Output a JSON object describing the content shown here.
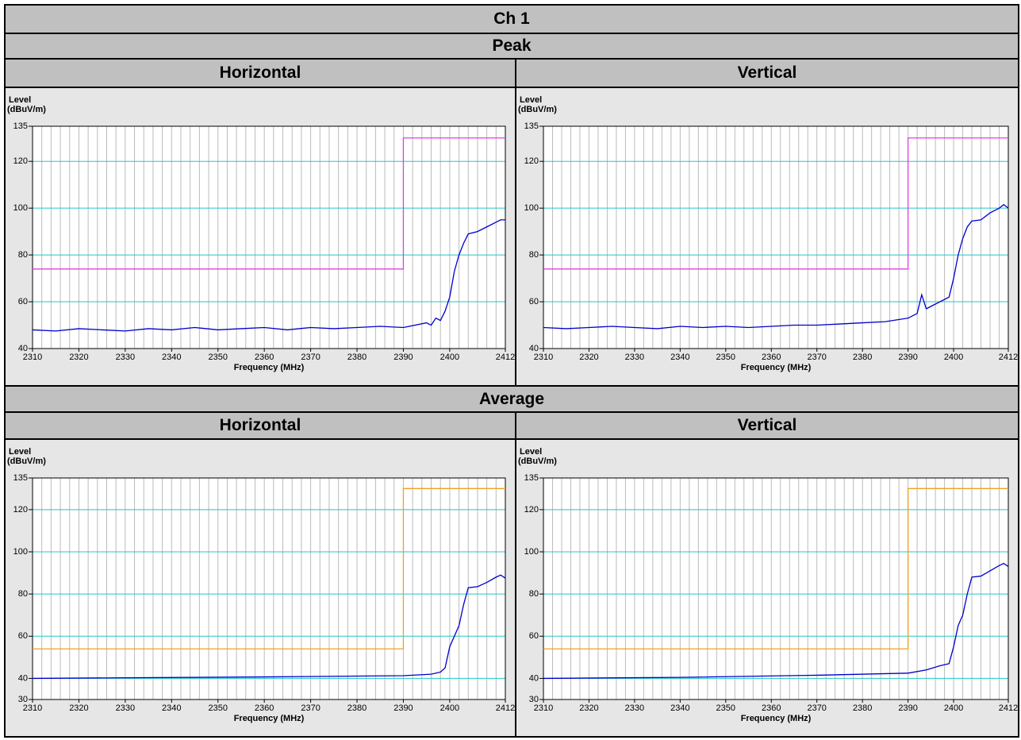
{
  "header": {
    "title": "Ch 1"
  },
  "sections": [
    {
      "title": "Peak",
      "panels": [
        {
          "title": "Horizontal",
          "chart": {
            "type": "line",
            "y_label": "Level",
            "y_unit": "(dBuV/m)",
            "x_label": "Frequency (MHz)",
            "xlim": [
              2310,
              2412
            ],
            "xticks": [
              2310,
              2320,
              2330,
              2340,
              2350,
              2360,
              2370,
              2380,
              2390,
              2400,
              2412
            ],
            "ylim": [
              40,
              135
            ],
            "yticks": [
              40,
              60,
              80,
              100,
              120,
              135
            ],
            "grid": true,
            "minor_grid_step": 2,
            "series": [
              {
                "color": "#e040e0",
                "x": [
                  2310,
                  2390,
                  2390,
                  2412
                ],
                "values": [
                  74,
                  74,
                  130,
                  130
                ]
              },
              {
                "color": "#0000cc",
                "x": [
                  2310,
                  2315,
                  2320,
                  2325,
                  2330,
                  2335,
                  2340,
                  2345,
                  2350,
                  2355,
                  2360,
                  2365,
                  2370,
                  2375,
                  2380,
                  2385,
                  2390,
                  2395,
                  2396,
                  2397,
                  2398,
                  2399,
                  2400,
                  2401,
                  2402,
                  2403,
                  2404,
                  2406,
                  2408,
                  2410,
                  2411,
                  2412
                ],
                "values": [
                  48,
                  47.5,
                  48.5,
                  48,
                  47.5,
                  48.5,
                  48,
                  49,
                  48,
                  48.5,
                  49,
                  48,
                  49,
                  48.5,
                  49,
                  49.5,
                  49,
                  51,
                  50,
                  53,
                  52,
                  56,
                  62,
                  73,
                  80,
                  85,
                  89,
                  90,
                  92,
                  94,
                  95,
                  95
                ]
              }
            ]
          }
        },
        {
          "title": "Vertical",
          "chart": {
            "type": "line",
            "y_label": "Level",
            "y_unit": "(dBuV/m)",
            "x_label": "Frequency (MHz)",
            "xlim": [
              2310,
              2412
            ],
            "xticks": [
              2310,
              2320,
              2330,
              2340,
              2350,
              2360,
              2370,
              2380,
              2390,
              2400,
              2412
            ],
            "ylim": [
              40,
              135
            ],
            "yticks": [
              40,
              60,
              80,
              100,
              120,
              135
            ],
            "grid": true,
            "minor_grid_step": 2,
            "series": [
              {
                "color": "#e040e0",
                "x": [
                  2310,
                  2390,
                  2390,
                  2412
                ],
                "values": [
                  74,
                  74,
                  130,
                  130
                ]
              },
              {
                "color": "#0000cc",
                "x": [
                  2310,
                  2315,
                  2320,
                  2325,
                  2330,
                  2335,
                  2340,
                  2345,
                  2350,
                  2355,
                  2360,
                  2365,
                  2370,
                  2375,
                  2380,
                  2385,
                  2390,
                  2392,
                  2393,
                  2394,
                  2396,
                  2398,
                  2399,
                  2400,
                  2401,
                  2402,
                  2403,
                  2404,
                  2406,
                  2408,
                  2410,
                  2411,
                  2412
                ],
                "values": [
                  49,
                  48.5,
                  49,
                  49.5,
                  49,
                  48.5,
                  49.5,
                  49,
                  49.5,
                  49,
                  49.5,
                  50,
                  50,
                  50.5,
                  51,
                  51.5,
                  53,
                  55,
                  63,
                  57,
                  59,
                  61,
                  62,
                  70,
                  80,
                  87,
                  92,
                  94.5,
                  95,
                  98,
                  100,
                  101.5,
                  100
                ]
              }
            ]
          }
        }
      ]
    },
    {
      "title": "Average",
      "panels": [
        {
          "title": "Horizontal",
          "chart": {
            "type": "line",
            "y_label": "Level",
            "y_unit": "(dBuV/m)",
            "x_label": "Frequency (MHz)",
            "xlim": [
              2310,
              2412
            ],
            "xticks": [
              2310,
              2320,
              2330,
              2340,
              2350,
              2360,
              2370,
              2380,
              2390,
              2400,
              2412
            ],
            "ylim": [
              30,
              135
            ],
            "yticks": [
              30,
              40,
              60,
              80,
              100,
              120,
              135
            ],
            "grid": true,
            "minor_grid_step": 2,
            "series": [
              {
                "color": "#f0a020",
                "x": [
                  2310,
                  2390,
                  2390,
                  2412
                ],
                "values": [
                  54,
                  54,
                  130,
                  130
                ]
              },
              {
                "color": "#0000cc",
                "x": [
                  2310,
                  2330,
                  2360,
                  2390,
                  2396,
                  2398,
                  2399,
                  2400,
                  2401,
                  2402,
                  2403,
                  2404,
                  2406,
                  2408,
                  2410,
                  2411,
                  2412
                ],
                "values": [
                  40,
                  40.3,
                  40.7,
                  41.3,
                  42,
                  43,
                  45,
                  55,
                  60,
                  65,
                  75,
                  83,
                  83.5,
                  85.5,
                  88,
                  89,
                  87.5
                ]
              }
            ]
          }
        },
        {
          "title": "Vertical",
          "chart": {
            "type": "line",
            "y_label": "Level",
            "y_unit": "(dBuV/m)",
            "x_label": "Frequency (MHz)",
            "xlim": [
              2310,
              2412
            ],
            "xticks": [
              2310,
              2320,
              2330,
              2340,
              2350,
              2360,
              2370,
              2380,
              2390,
              2400,
              2412
            ],
            "ylim": [
              30,
              135
            ],
            "yticks": [
              30,
              40,
              60,
              80,
              100,
              120,
              135
            ],
            "grid": true,
            "minor_grid_step": 2,
            "series": [
              {
                "color": "#f0a020",
                "x": [
                  2310,
                  2390,
                  2390,
                  2412
                ],
                "values": [
                  54,
                  54,
                  130,
                  130
                ]
              },
              {
                "color": "#0000cc",
                "x": [
                  2310,
                  2340,
                  2370,
                  2390,
                  2394,
                  2397,
                  2399,
                  2400,
                  2401,
                  2402,
                  2403,
                  2404,
                  2406,
                  2408,
                  2410,
                  2411,
                  2412
                ],
                "values": [
                  40,
                  40.5,
                  41.5,
                  42.5,
                  44,
                  46,
                  47,
                  55,
                  65,
                  70,
                  80,
                  88,
                  88.5,
                  91,
                  93.5,
                  94.5,
                  93
                ]
              }
            ]
          }
        }
      ]
    }
  ]
}
